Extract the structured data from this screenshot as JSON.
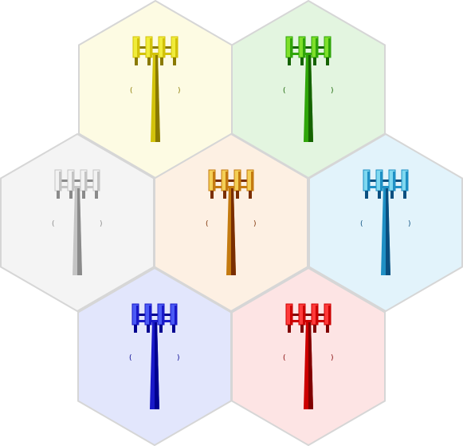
{
  "diagram": {
    "cells": [
      {
        "id": "top-left",
        "fill": "#fdfbe3",
        "tower": {
          "light": "#f0ec3a",
          "mid": "#d2c20a",
          "dark": "#8a7a00"
        }
      },
      {
        "id": "top-right",
        "fill": "#e3f5e0",
        "tower": {
          "light": "#7ee02a",
          "mid": "#2fa50a",
          "dark": "#156300"
        }
      },
      {
        "id": "middle-left",
        "fill": "#f4f4f4",
        "tower": {
          "light": "#f2f2f2",
          "mid": "#c4c4c4",
          "dark": "#8a8a8a"
        }
      },
      {
        "id": "center",
        "fill": "#fdf0e3",
        "tower": {
          "light": "#f4cf55",
          "mid": "#c47a10",
          "dark": "#7a2e00"
        }
      },
      {
        "id": "middle-right",
        "fill": "#e2f3fb",
        "tower": {
          "light": "#7fd8f0",
          "mid": "#1e8fc4",
          "dark": "#0a4f80"
        }
      },
      {
        "id": "bottom-left",
        "fill": "#e2e6fc",
        "tower": {
          "light": "#4a5af5",
          "mid": "#1818c8",
          "dark": "#000090"
        }
      },
      {
        "id": "bottom-right",
        "fill": "#fde4e4",
        "tower": {
          "light": "#ff3a3a",
          "mid": "#cc0000",
          "dark": "#800000"
        }
      }
    ],
    "border_color": "#d6d6d6"
  }
}
